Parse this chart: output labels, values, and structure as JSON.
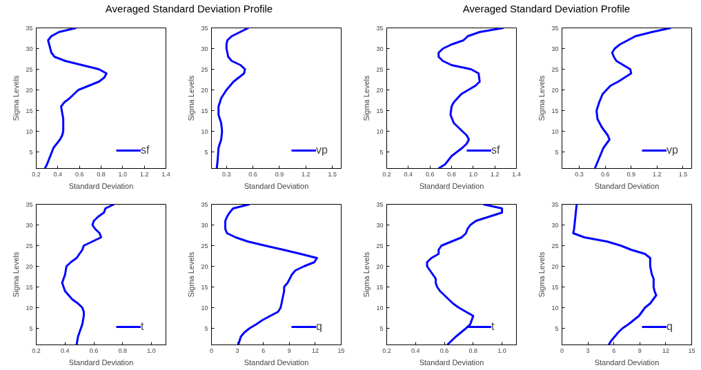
{
  "chart_data": [
    {
      "type": "line",
      "title": "Averaged Standard Deviation Profile",
      "xlabel": "Standard Deviation",
      "ylabel": "Sigma Levels",
      "xlim": [
        0.2,
        1.4
      ],
      "ylim": [
        1,
        35
      ],
      "xticks": [
        {
          "value": 0.2,
          "label": "0.2"
        },
        {
          "value": 0.4,
          "label": "0.4"
        },
        {
          "value": 0.6,
          "label": "0.6"
        },
        {
          "value": 0.8,
          "label": "0.8"
        },
        {
          "value": 1.0,
          "label": "1.0"
        },
        {
          "value": 1.2,
          "label": "1.2"
        },
        {
          "value": 1.4,
          "label": "1.4"
        }
      ],
      "yticks": [
        5,
        10,
        15,
        20,
        25,
        30,
        35
      ],
      "grid": false,
      "legend": "bottom right",
      "series": [
        {
          "name": "sf",
          "color": "#0000ff",
          "x": [
            0.28,
            0.3,
            0.33,
            0.36,
            0.42,
            0.44,
            0.45,
            0.45,
            0.43,
            0.46,
            0.51,
            0.59,
            0.78,
            0.83,
            0.85,
            0.78,
            0.47,
            0.37,
            0.34,
            0.32,
            0.31,
            0.34,
            0.41,
            0.57
          ],
          "values": [
            1,
            2,
            4,
            6,
            8,
            9,
            10,
            13,
            16,
            17,
            18,
            20,
            22,
            23,
            24,
            25,
            27,
            28,
            29,
            31,
            32,
            33,
            34,
            35
          ]
        }
      ]
    },
    {
      "type": "line",
      "xlabel": "Standard Deviation",
      "ylabel": "Sigma Levels",
      "xlim": [
        0.13,
        1.6
      ],
      "ylim": [
        1,
        35
      ],
      "xticks": [
        {
          "value": 0.3,
          "label": "0.3"
        },
        {
          "value": 0.6,
          "label": "0.6"
        },
        {
          "value": 0.9,
          "label": "0.9"
        },
        {
          "value": 1.2,
          "label": "1.2"
        },
        {
          "value": 1.5,
          "label": "1.5"
        }
      ],
      "yticks": [
        5,
        10,
        15,
        20,
        25,
        30,
        35
      ],
      "grid": false,
      "legend": "bottom right",
      "series": [
        {
          "name": "vp",
          "color": "#0000ff",
          "x": [
            0.19,
            0.2,
            0.21,
            0.24,
            0.25,
            0.24,
            0.21,
            0.21,
            0.24,
            0.3,
            0.38,
            0.5,
            0.51,
            0.46,
            0.36,
            0.32,
            0.3,
            0.3,
            0.31,
            0.36,
            0.55
          ],
          "values": [
            1,
            3,
            6,
            8,
            10,
            12,
            14,
            16,
            18,
            20,
            22,
            24,
            25,
            26,
            27,
            28,
            30,
            31,
            32,
            33,
            35
          ]
        }
      ]
    },
    {
      "type": "line",
      "title": "Averaged Standard Deviation Profile",
      "xlabel": "Standard Deviation",
      "ylabel": "Sigma Levels",
      "xlim": [
        0.2,
        1.4
      ],
      "ylim": [
        1,
        35
      ],
      "xticks": [
        {
          "value": 0.2,
          "label": "0.2"
        },
        {
          "value": 0.4,
          "label": "0.4"
        },
        {
          "value": 0.6,
          "label": "0.6"
        },
        {
          "value": 0.8,
          "label": "0.8"
        },
        {
          "value": 1.0,
          "label": "1.0"
        },
        {
          "value": 1.2,
          "label": "1.2"
        },
        {
          "value": 1.4,
          "label": "1.4"
        }
      ],
      "yticks": [
        5,
        10,
        15,
        20,
        25,
        30,
        35
      ],
      "grid": false,
      "legend": "bottom right",
      "series": [
        {
          "name": "sf",
          "color": "#0000ff",
          "x": [
            0.68,
            0.74,
            0.8,
            0.9,
            0.94,
            0.96,
            0.94,
            0.9,
            0.82,
            0.79,
            0.8,
            0.82,
            0.89,
            1.02,
            1.06,
            1.05,
            0.98,
            0.8,
            0.72,
            0.68,
            0.68,
            0.72,
            0.8,
            0.91,
            0.95,
            1.06,
            1.28
          ],
          "values": [
            1,
            2,
            4,
            6,
            7,
            8,
            9,
            10,
            12,
            14,
            16,
            17,
            19,
            21,
            22,
            24,
            25,
            26,
            27,
            28,
            29,
            30,
            31,
            32,
            33,
            34,
            35
          ]
        }
      ]
    },
    {
      "type": "line",
      "xlabel": "Standard Deviation",
      "ylabel": "Sigma Levels",
      "xlim": [
        0.1,
        1.6
      ],
      "ylim": [
        1,
        35
      ],
      "xticks": [
        {
          "value": 0.3,
          "label": "0.3"
        },
        {
          "value": 0.6,
          "label": "0.6"
        },
        {
          "value": 0.9,
          "label": "0.9"
        },
        {
          "value": 1.2,
          "label": "1.2"
        },
        {
          "value": 1.5,
          "label": "1.5"
        }
      ],
      "yticks": [
        5,
        10,
        15,
        20,
        25,
        30,
        35
      ],
      "grid": false,
      "legend": "bottom right",
      "series": [
        {
          "name": "vp",
          "color": "#0000ff",
          "x": [
            0.48,
            0.52,
            0.56,
            0.58,
            0.65,
            0.63,
            0.56,
            0.51,
            0.5,
            0.53,
            0.57,
            0.66,
            0.75,
            0.9,
            0.89,
            0.81,
            0.73,
            0.7,
            0.68,
            0.71,
            0.77,
            0.95,
            1.14,
            1.36
          ],
          "values": [
            1,
            3,
            5,
            6,
            8,
            9,
            11,
            13,
            15,
            17,
            19,
            21,
            22,
            24,
            25,
            26,
            27,
            28,
            29,
            30,
            31,
            33,
            34,
            35
          ]
        }
      ]
    },
    {
      "type": "line",
      "xlabel": "Standard Deviation",
      "ylabel": "Sigma Levels",
      "xlim": [
        0.2,
        1.1
      ],
      "ylim": [
        1,
        35
      ],
      "xticks": [
        {
          "value": 0.2,
          "label": "0.2"
        },
        {
          "value": 0.4,
          "label": "0.4"
        },
        {
          "value": 0.6,
          "label": "0.6"
        },
        {
          "value": 0.8,
          "label": "0.8"
        },
        {
          "value": 1.0,
          "label": "1.0"
        }
      ],
      "yticks": [
        5,
        10,
        15,
        20,
        25,
        30,
        35
      ],
      "grid": false,
      "legend": "bottom right",
      "series": [
        {
          "name": "t",
          "color": "#0000ff",
          "x": [
            0.48,
            0.49,
            0.5,
            0.51,
            0.52,
            0.53,
            0.53,
            0.52,
            0.49,
            0.45,
            0.4,
            0.39,
            0.38,
            0.4,
            0.41,
            0.44,
            0.48,
            0.52,
            0.53,
            0.59,
            0.65,
            0.64,
            0.61,
            0.59,
            0.6,
            0.63,
            0.67,
            0.68,
            0.74
          ],
          "values": [
            1,
            3,
            4,
            5,
            6,
            8,
            9,
            10,
            11,
            12,
            14,
            15,
            16,
            18,
            20,
            21,
            22,
            24,
            25,
            26,
            27,
            28,
            29,
            30,
            31,
            32,
            33,
            34,
            35
          ]
        }
      ]
    },
    {
      "type": "line",
      "xlabel": "Standard Deviation",
      "ylabel": "Sigma Levels",
      "xlim": [
        0,
        15
      ],
      "ylim": [
        1,
        35
      ],
      "xticks": [
        0,
        3,
        6,
        9,
        12,
        15
      ],
      "yticks": [
        5,
        10,
        15,
        20,
        25,
        30,
        35
      ],
      "grid": false,
      "legend": "bottom right",
      "series": [
        {
          "name": "q",
          "color": "#0000ff",
          "x": [
            3.1,
            3.4,
            3.8,
            4.4,
            5.2,
            5.9,
            6.8,
            7.7,
            8.0,
            8.2,
            8.4,
            8.4,
            8.8,
            9.3,
            9.7,
            10.7,
            11.9,
            12.2,
            10.3,
            8.3,
            6.2,
            4.2,
            2.8,
            1.8,
            1.6,
            1.6,
            1.8,
            2.1,
            2.5,
            4.4
          ],
          "values": [
            1,
            3,
            4,
            5,
            6,
            7,
            8,
            9,
            10,
            12,
            14,
            15,
            16,
            18,
            19,
            20,
            21,
            22,
            23,
            24,
            25,
            26,
            27,
            28,
            29,
            31,
            32,
            33,
            34,
            35
          ]
        }
      ]
    },
    {
      "type": "line",
      "xlabel": "Standard Deviation",
      "ylabel": "Sigma Levels",
      "xlim": [
        0.2,
        1.1
      ],
      "ylim": [
        1,
        35
      ],
      "xticks": [
        {
          "value": 0.2,
          "label": "0.2"
        },
        {
          "value": 0.4,
          "label": "0.4"
        },
        {
          "value": 0.6,
          "label": "0.6"
        },
        {
          "value": 0.8,
          "label": "0.8"
        },
        {
          "value": 1.0,
          "label": "1.0"
        }
      ],
      "yticks": [
        5,
        10,
        15,
        20,
        25,
        30,
        35
      ],
      "grid": false,
      "legend": "bottom right",
      "series": [
        {
          "name": "t",
          "color": "#0000ff",
          "x": [
            0.62,
            0.68,
            0.75,
            0.78,
            0.79,
            0.8,
            0.75,
            0.7,
            0.66,
            0.6,
            0.57,
            0.55,
            0.54,
            0.54,
            0.52,
            0.5,
            0.48,
            0.48,
            0.51,
            0.56,
            0.56,
            0.58,
            0.65,
            0.72,
            0.75,
            0.76,
            0.78,
            0.82,
            0.91,
            1.0,
            1.0,
            0.87
          ],
          "values": [
            1,
            3,
            5,
            6,
            7,
            8,
            9,
            10,
            11,
            13,
            14,
            15,
            16,
            17,
            18,
            19,
            20,
            21,
            22,
            23,
            24,
            25,
            26,
            27,
            28,
            29,
            30,
            31,
            32,
            33,
            34,
            35
          ]
        }
      ]
    },
    {
      "type": "line",
      "xlabel": "Standard Deviation",
      "ylabel": "Sigma Levels",
      "xlim": [
        0,
        15
      ],
      "ylim": [
        1,
        35
      ],
      "xticks": [
        0,
        3,
        6,
        9,
        12,
        15
      ],
      "yticks": [
        5,
        10,
        15,
        20,
        25,
        30,
        35
      ],
      "grid": false,
      "legend": "bottom right",
      "series": [
        {
          "name": "q",
          "color": "#0000ff",
          "x": [
            5.4,
            5.7,
            6.5,
            7.0,
            7.7,
            8.9,
            9.6,
            10.2,
            10.9,
            10.7,
            10.6,
            10.6,
            10.4,
            10.2,
            10.2,
            9.6,
            8.0,
            6.8,
            5.2,
            2.6,
            1.3,
            1.4,
            1.5,
            1.6,
            1.7
          ],
          "values": [
            1,
            2,
            4,
            5,
            6,
            8,
            10,
            11,
            13,
            14,
            15,
            17,
            18,
            20,
            22,
            23,
            24,
            25,
            26,
            27,
            28,
            29,
            31,
            33,
            35
          ]
        }
      ]
    }
  ]
}
